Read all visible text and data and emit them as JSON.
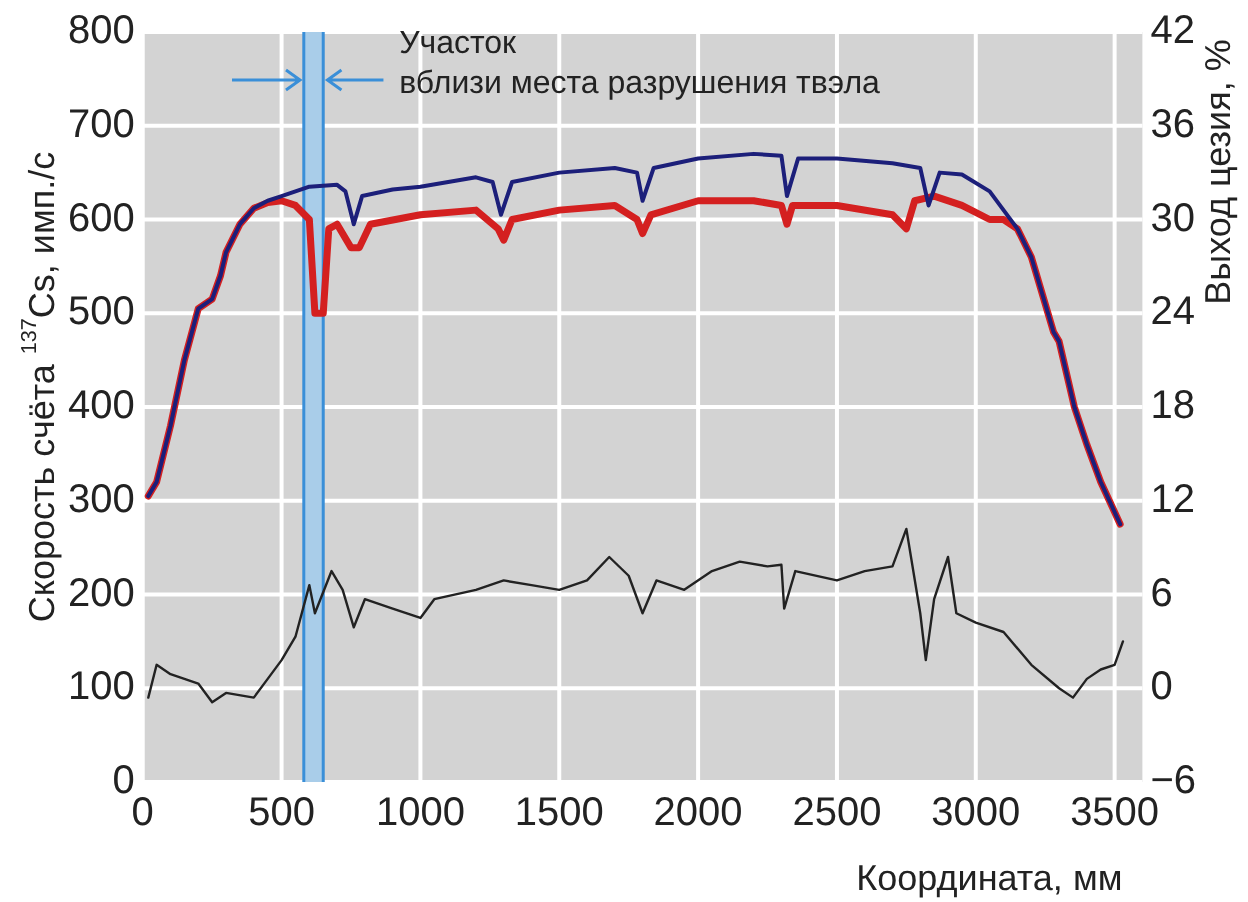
{
  "chart_data": {
    "type": "line",
    "xlabel": "Координата, мм",
    "ylabel": "Скорость счёта $^{137}$Cs, имп./с",
    "y2label": "Выход цезия, %",
    "xlim": [
      0,
      3600
    ],
    "xticks": [
      0,
      500,
      1000,
      1500,
      2000,
      2500,
      3000,
      3500
    ],
    "ylim": [
      0,
      800
    ],
    "yticks": [
      0,
      100,
      200,
      300,
      400,
      500,
      600,
      700,
      800
    ],
    "y2lim": [
      -6,
      42
    ],
    "y2ticks": [
      {
        "value": -6,
        "label": "−6"
      },
      0,
      6,
      12,
      18,
      24,
      30,
      36,
      42
    ],
    "grid": true,
    "ref_lines": [
      {
        "axis": "x",
        "value": 580,
        "color": "#3a8fd8"
      },
      {
        "axis": "x",
        "value": 650,
        "color": "#3a8fd8"
      }
    ],
    "bands": [
      {
        "axis": "x",
        "from": 580,
        "to": 650,
        "label": "Участок\nвблизи места разрушения твэла",
        "color": "#a9cde9"
      }
    ],
    "series": [
      {
        "color": "#1c1f7a",
        "x": [
          20,
          50,
          100,
          150,
          200,
          250,
          280,
          300,
          350,
          400,
          450,
          500,
          550,
          600,
          700,
          730,
          760,
          790,
          900,
          1000,
          1200,
          1260,
          1290,
          1330,
          1500,
          1700,
          1780,
          1800,
          1840,
          2000,
          2200,
          2300,
          2320,
          2360,
          2500,
          2700,
          2800,
          2830,
          2870,
          2950,
          3050,
          3100,
          3150,
          3200,
          3280,
          3300,
          3355,
          3400,
          3450,
          3520
        ],
        "values": [
          305,
          320,
          380,
          450,
          505,
          515,
          540,
          565,
          595,
          612,
          620,
          625,
          630,
          635,
          637,
          630,
          595,
          625,
          632,
          635,
          645,
          640,
          605,
          640,
          650,
          655,
          650,
          620,
          655,
          665,
          670,
          668,
          625,
          665,
          665,
          660,
          655,
          615,
          650,
          648,
          630,
          610,
          590,
          560,
          480,
          470,
          400,
          360,
          320,
          275
        ]
      },
      {
        "color": "#d42020",
        "x": [
          20,
          50,
          100,
          150,
          200,
          250,
          280,
          300,
          350,
          400,
          450,
          500,
          550,
          600,
          620,
          650,
          670,
          700,
          750,
          780,
          820,
          1000,
          1200,
          1280,
          1300,
          1330,
          1500,
          1700,
          1780,
          1800,
          1830,
          2000,
          2200,
          2300,
          2320,
          2340,
          2500,
          2700,
          2750,
          2780,
          2850,
          2950,
          3050,
          3100,
          3150,
          3200,
          3280,
          3300,
          3355,
          3400,
          3450,
          3520
        ],
        "values": [
          305,
          320,
          380,
          450,
          505,
          515,
          540,
          565,
          595,
          612,
          618,
          620,
          615,
          600,
          500,
          500,
          590,
          595,
          570,
          570,
          595,
          605,
          610,
          590,
          578,
          600,
          610,
          615,
          600,
          585,
          605,
          620,
          620,
          615,
          595,
          615,
          615,
          605,
          590,
          620,
          625,
          615,
          600,
          600,
          590,
          560,
          480,
          470,
          400,
          360,
          320,
          275
        ]
      },
      {
        "color": "#222222",
        "axis": "y2",
        "x": [
          20,
          50,
          100,
          200,
          250,
          300,
          400,
          450,
          500,
          550,
          600,
          620,
          680,
          720,
          760,
          800,
          900,
          1000,
          1050,
          1200,
          1300,
          1400,
          1500,
          1600,
          1680,
          1750,
          1800,
          1850,
          1950,
          2050,
          2150,
          2250,
          2300,
          2310,
          2350,
          2500,
          2600,
          2700,
          2750,
          2800,
          2820,
          2850,
          2900,
          2930,
          3000,
          3100,
          3200,
          3300,
          3350,
          3400,
          3450,
          3500,
          3530
        ],
        "values": [
          -0.6,
          1.5,
          0.9,
          0.3,
          -0.9,
          -0.3,
          -0.6,
          0.6,
          1.8,
          3.3,
          6.6,
          4.8,
          7.5,
          6.3,
          3.9,
          5.7,
          5.1,
          4.5,
          5.7,
          6.3,
          6.9,
          6.6,
          6.3,
          6.9,
          8.4,
          7.2,
          4.8,
          6.9,
          6.3,
          7.5,
          8.1,
          7.8,
          7.9,
          5.1,
          7.5,
          6.9,
          7.5,
          7.8,
          10.2,
          4.8,
          1.8,
          5.7,
          8.4,
          4.8,
          4.2,
          3.6,
          1.5,
          0,
          -0.6,
          0.6,
          1.2,
          1.5,
          3.0
        ]
      }
    ]
  }
}
